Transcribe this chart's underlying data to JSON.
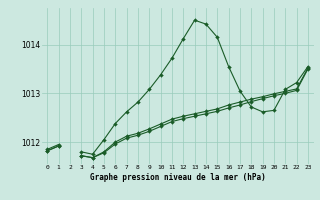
{
  "title": "Graphe pression niveau de la mer (hPa)",
  "bg_color": "#cce8e0",
  "grid_color": "#99ccbb",
  "line_color": "#1a5c28",
  "hours": [
    0,
    1,
    2,
    3,
    4,
    5,
    6,
    7,
    8,
    9,
    10,
    11,
    12,
    13,
    14,
    15,
    16,
    17,
    18,
    19,
    20,
    21,
    22,
    23
  ],
  "x_labels": [
    "0",
    "1",
    "2",
    "3",
    "4",
    "5",
    "6",
    "7",
    "8",
    "9",
    "10",
    "11",
    "12",
    "13",
    "14",
    "15",
    "16",
    "17",
    "18",
    "19",
    "20",
    "21",
    "22",
    "23"
  ],
  "curve1": [
    1011.85,
    1011.95,
    null,
    1011.8,
    1011.75,
    1012.05,
    1012.38,
    1012.62,
    1012.82,
    1013.08,
    1013.38,
    1013.72,
    1014.12,
    1014.5,
    1014.42,
    1014.15,
    1013.55,
    1013.05,
    1012.72,
    1012.62,
    1012.65,
    1013.08,
    1013.22,
    1013.55
  ],
  "curve2": [
    1011.82,
    1011.92,
    null,
    1011.72,
    1011.68,
    1011.8,
    1012.0,
    1012.12,
    1012.18,
    1012.27,
    1012.37,
    1012.47,
    1012.53,
    1012.58,
    1012.63,
    1012.68,
    1012.76,
    1012.82,
    1012.88,
    1012.93,
    1012.99,
    1013.04,
    1013.09,
    1013.52
  ],
  "curve3": [
    1011.82,
    1011.92,
    null,
    1011.72,
    1011.68,
    1011.78,
    1011.96,
    1012.08,
    1012.14,
    1012.22,
    1012.32,
    1012.42,
    1012.48,
    1012.53,
    1012.58,
    1012.63,
    1012.7,
    1012.76,
    1012.83,
    1012.89,
    1012.95,
    1013.0,
    1013.06,
    1013.5
  ],
  "ylim": [
    1011.55,
    1014.75
  ],
  "yticks": [
    1012,
    1013,
    1014
  ],
  "xlim": [
    -0.5,
    23.5
  ]
}
